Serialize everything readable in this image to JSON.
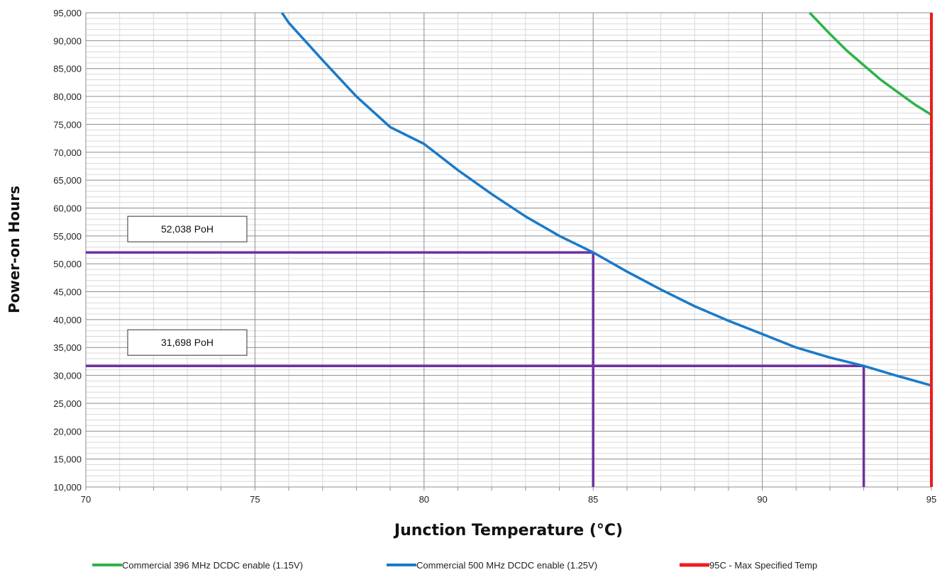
{
  "chart_data": {
    "type": "line",
    "xlabel": "Junction Temperature (°C)",
    "ylabel": "Power-on Hours",
    "xlim": [
      70,
      95
    ],
    "ylim": [
      10000,
      95000
    ],
    "x_ticks": [
      70,
      75,
      80,
      85,
      90,
      95
    ],
    "x_tick_labels": [
      "70",
      "75",
      "80",
      "85",
      "90",
      "95"
    ],
    "y_ticks": [
      10000,
      15000,
      20000,
      25000,
      30000,
      35000,
      40000,
      45000,
      50000,
      55000,
      60000,
      65000,
      70000,
      75000,
      80000,
      85000,
      90000,
      95000
    ],
    "y_tick_labels": [
      "10,000",
      "15,000",
      "20,000",
      "25,000",
      "30,000",
      "35,000",
      "40,000",
      "45,000",
      "50,000",
      "55,000",
      "60,000",
      "65,000",
      "70,000",
      "75,000",
      "80,000",
      "85,000",
      "90,000",
      "95,000"
    ],
    "grid": true,
    "legend_position": "bottom",
    "series": [
      {
        "name": "Commercial 396 MHz DCDC enable (1.15V)",
        "color": "#2db34a",
        "x": [
          91.4,
          92,
          92.5,
          93,
          93.5,
          94,
          94.5,
          95
        ],
        "y": [
          95000,
          91200,
          88200,
          85600,
          83000,
          80800,
          78600,
          76700
        ]
      },
      {
        "name": "Commercial 500 MHz DCDC enable (1.25V)",
        "color": "#1a7ac9",
        "x": [
          75.8,
          76,
          77,
          78,
          79,
          80,
          81,
          82,
          83,
          84,
          85,
          86,
          87,
          88,
          89,
          90,
          91,
          92,
          93,
          94,
          95
        ],
        "y": [
          95000,
          93200,
          86500,
          80000,
          74500,
          71500,
          66800,
          62500,
          58500,
          55000,
          52038,
          48600,
          45400,
          42400,
          39800,
          37400,
          35000,
          33200,
          31698,
          29900,
          28200
        ]
      },
      {
        "name": "95C - Max Specified Temp",
        "color": "#ee1c1c",
        "x": [
          95,
          95
        ],
        "y": [
          10000,
          95000
        ]
      }
    ],
    "reference_lines": [
      {
        "x": 85,
        "y": 52038,
        "label": "52,038 PoH",
        "color": "#7030a0"
      },
      {
        "x": 93,
        "y": 31698,
        "label": "31,698 PoH",
        "color": "#7030a0"
      }
    ]
  }
}
